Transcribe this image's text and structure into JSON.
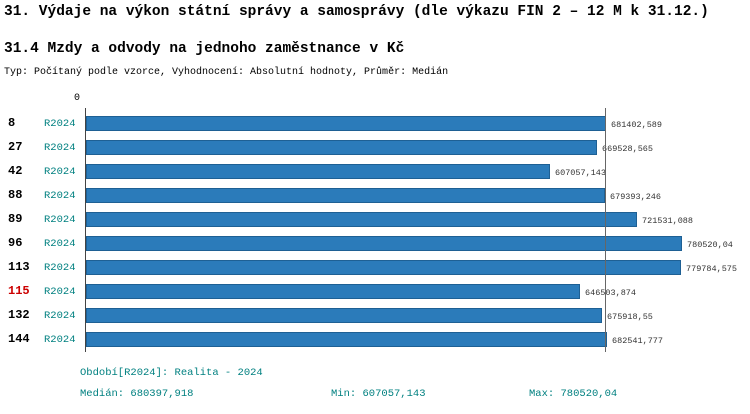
{
  "header": {
    "title": "31. Výdaje na výkon státní správy a samosprávy (dle výkazu FIN 2 – 12 M k 31.12.)",
    "subtitle": "31.4 Mzdy a odvody na jednoho zaměstnance v Kč",
    "meta": "Typ: Počítaný podle vzorce, Vyhodnocení: Absolutní hodnoty, Průměr: Medián"
  },
  "axis": {
    "origin_label": "0"
  },
  "chart_data": {
    "type": "bar",
    "orientation": "horizontal",
    "title": "31.4 Mzdy a odvody na jednoho zaměstnance v Kč",
    "categories": [
      "8",
      "27",
      "42",
      "88",
      "89",
      "96",
      "113",
      "115",
      "132",
      "144"
    ],
    "series_label": "R2024",
    "values": [
      681402.589,
      669528.565,
      607057.143,
      679393.246,
      721531.088,
      780520.04,
      779784.575,
      646503.874,
      675918.55,
      682541.777
    ],
    "value_labels": [
      "681402,589",
      "669528,565",
      "607057,143",
      "679393,246",
      "721531,088",
      "780520,04",
      "779784,575",
      "646503,874",
      "675918,55",
      "682541,777"
    ],
    "highlighted_category": "115",
    "median_value": 680397.918,
    "xlim": [
      0,
      780520.04
    ],
    "grid": false,
    "legend_position": "none",
    "bar_color": "#2b7bba",
    "highlight_color": "#cc0000"
  },
  "footer": {
    "period": "Období[R2024]: Realita - 2024",
    "median": "Medián: 680397,918",
    "min": "Min: 607057,143",
    "max": "Max: 780520,04"
  },
  "colors": {
    "accent_teal": "#008080",
    "bar_border": "#1e6094",
    "median_line": "#666666",
    "axis_line": "#444444",
    "value_label": "#333333"
  }
}
